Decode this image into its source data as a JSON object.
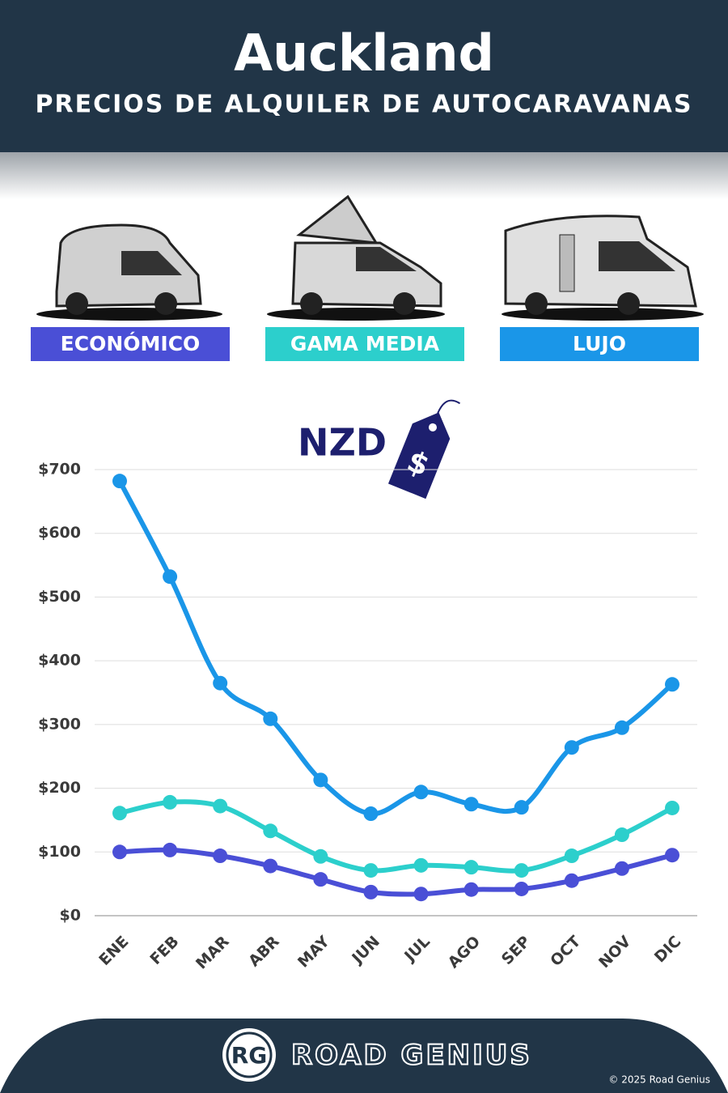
{
  "header": {
    "title": "Auckland",
    "subtitle": "PRECIOS DE ALQUILER DE AUTOCARAVANAS"
  },
  "currency": "NZD",
  "currency_symbol": "$",
  "chart_data": {
    "type": "line",
    "categories": [
      "ENE",
      "FEB",
      "MAR",
      "ABR",
      "MAY",
      "JUN",
      "JUL",
      "AGO",
      "SEP",
      "OCT",
      "NOV",
      "DIC"
    ],
    "series": [
      {
        "name": "ECONÓMICO",
        "color": "#4a4fd6",
        "values": [
          100,
          103,
          94,
          78,
          57,
          37,
          34,
          41,
          42,
          55,
          74,
          95
        ]
      },
      {
        "name": "GAMA MEDIA",
        "color": "#2ccfcc",
        "values": [
          161,
          178,
          172,
          133,
          93,
          71,
          79,
          76,
          71,
          94,
          127,
          169
        ]
      },
      {
        "name": "LUJO",
        "color": "#1a96e8",
        "values": [
          682,
          532,
          365,
          309,
          213,
          160,
          194,
          175,
          170,
          264,
          295,
          363
        ]
      }
    ],
    "ylim": [
      0,
      700
    ],
    "yticks": [
      {
        "value": 0,
        "label": "$0"
      },
      {
        "value": 100,
        "label": "$100"
      },
      {
        "value": 200,
        "label": "$200"
      },
      {
        "value": 300,
        "label": "$300"
      },
      {
        "value": 400,
        "label": "$400"
      },
      {
        "value": 500,
        "label": "$500"
      },
      {
        "value": 600,
        "label": "$600"
      },
      {
        "value": 700,
        "label": "$700"
      }
    ],
    "grid": true
  },
  "footer": {
    "logo": "RG",
    "brand": "ROAD GENIUS",
    "copyright": "© 2025 Road Genius"
  }
}
